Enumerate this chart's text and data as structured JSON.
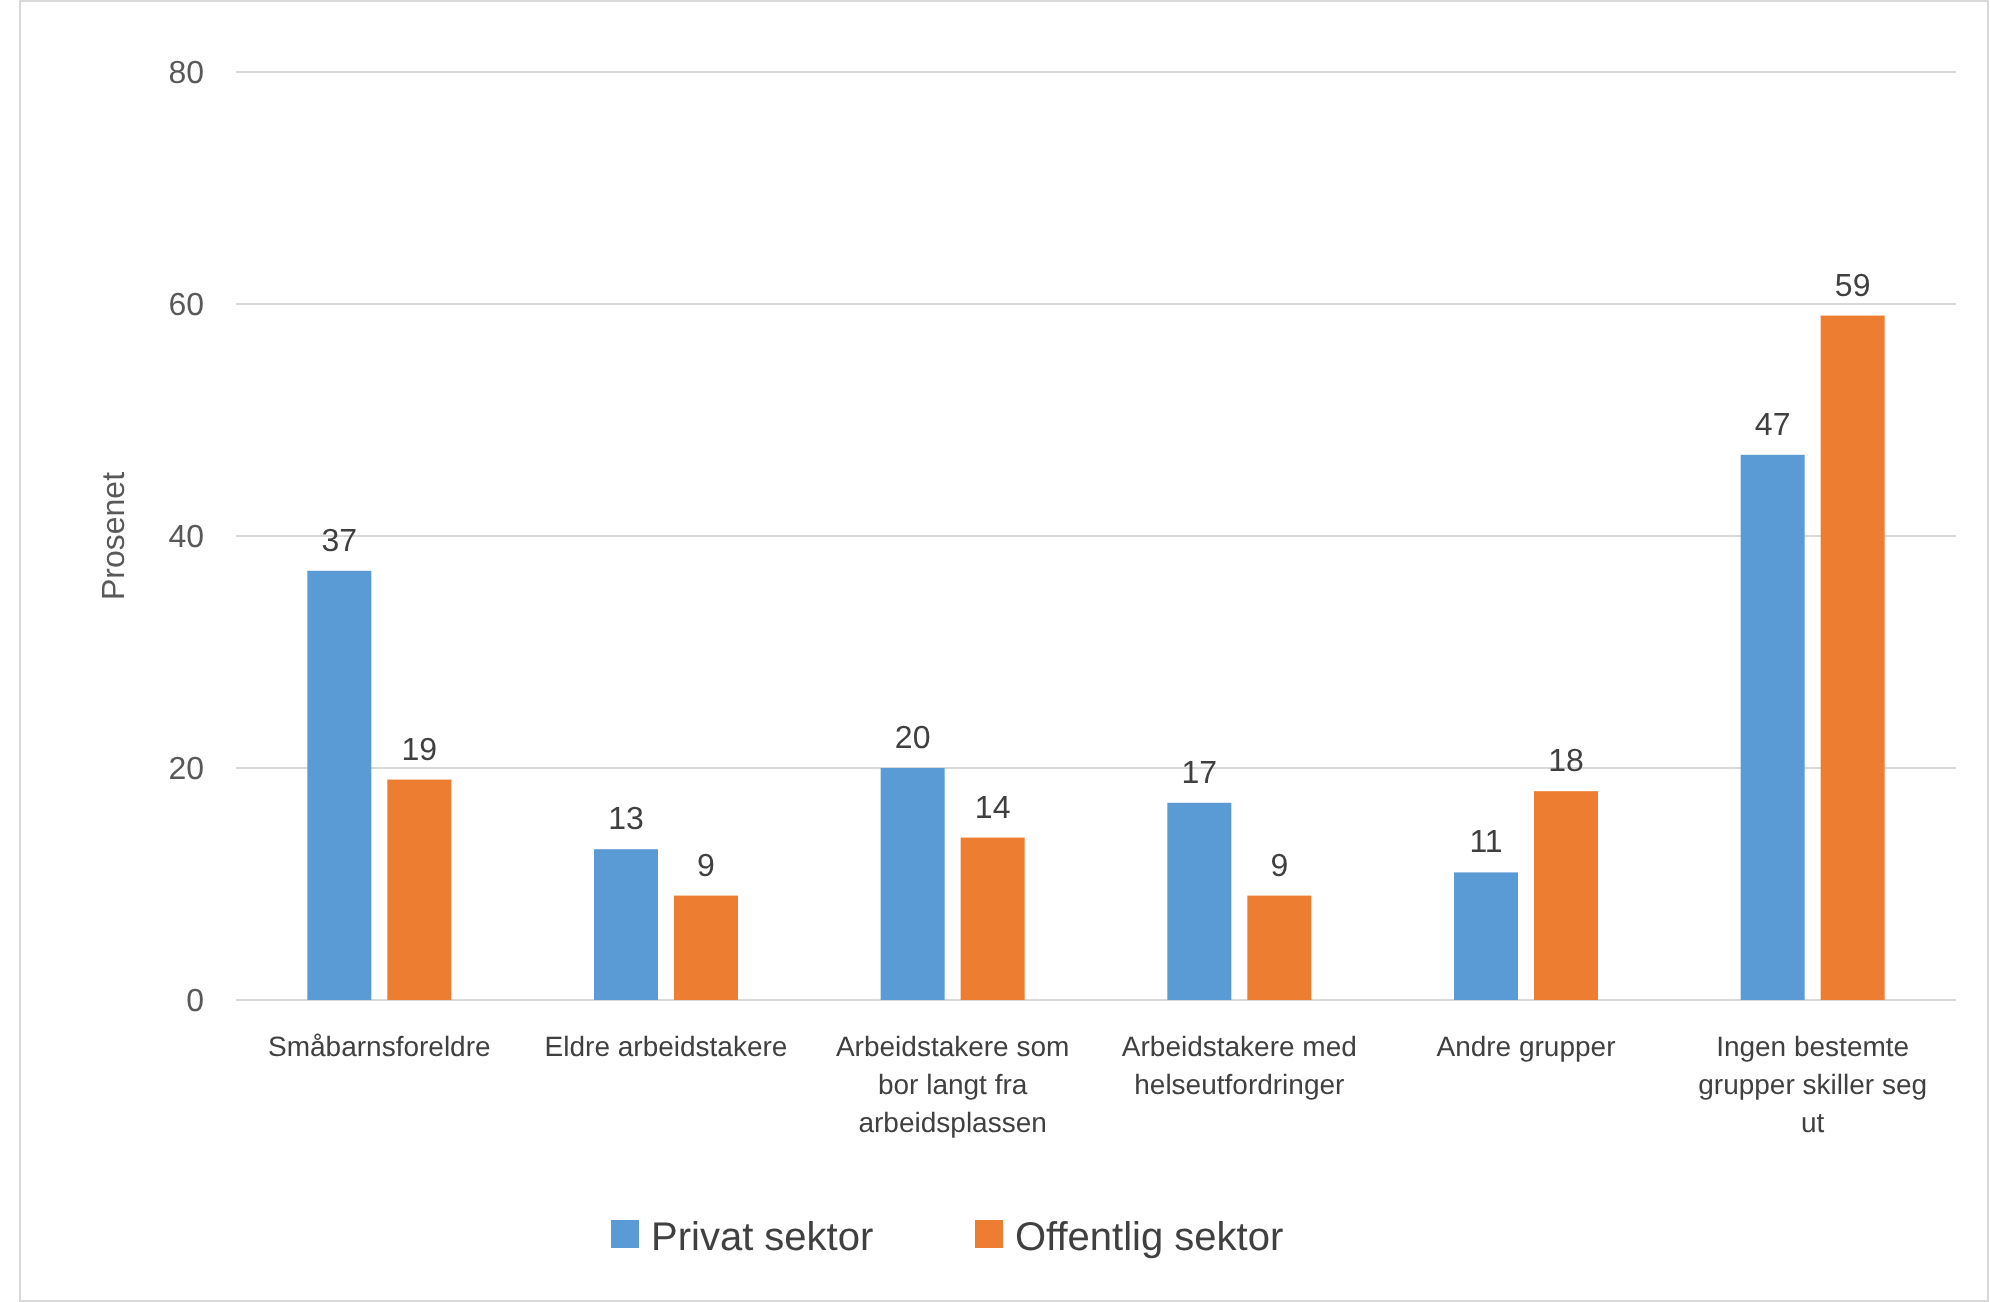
{
  "chart_data": {
    "type": "bar",
    "ylabel": "Prosenet",
    "categories": [
      "Småbarnsforeldre",
      "Eldre arbeidstakere",
      "Arbeidstakere som bor langt fra arbeidsplassen",
      "Arbeidstakere med helseutfordringer",
      "Andre grupper",
      "Ingen bestemte grupper skiller seg ut"
    ],
    "series": [
      {
        "name": "Privat sektor",
        "color": "#5b9bd5",
        "values": [
          37,
          13,
          20,
          17,
          11,
          47
        ]
      },
      {
        "name": "Offentlig sektor",
        "color": "#ed7d31",
        "values": [
          19,
          9,
          14,
          9,
          18,
          59
        ]
      }
    ],
    "ylim": [
      0,
      80
    ],
    "yticks": [
      0,
      20,
      40,
      60,
      80
    ],
    "grid": "y",
    "legend": "bottom",
    "data_labels": true
  }
}
